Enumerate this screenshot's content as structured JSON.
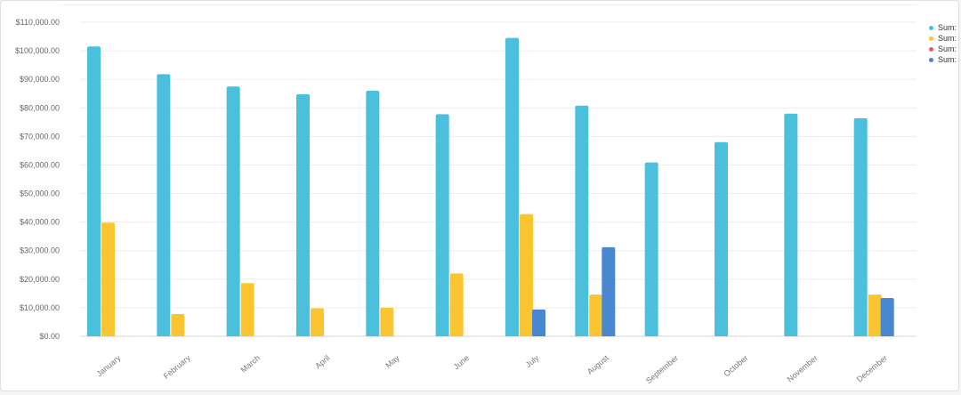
{
  "chart_data": {
    "type": "bar",
    "categories": [
      "January",
      "February",
      "March",
      "April",
      "May",
      "June",
      "July",
      "August",
      "September",
      "October",
      "November",
      "December"
    ],
    "series": [
      {
        "name": "Sum: In",
        "color": "#4bc0dd",
        "values": [
          101500,
          91800,
          87500,
          84800,
          86000,
          77800,
          104500,
          80800,
          60900,
          68000,
          78000,
          76400
        ]
      },
      {
        "name": "Sum: P",
        "color": "#fbc531",
        "values": [
          39800,
          7800,
          18600,
          9800,
          10000,
          22000,
          42800,
          14600,
          0,
          0,
          0,
          14600
        ]
      },
      {
        "name": "Sum: A",
        "color": "#f3566b",
        "values": [
          0,
          0,
          0,
          0,
          0,
          0,
          0,
          0,
          0,
          0,
          0,
          0
        ]
      },
      {
        "name": "Sum: E",
        "color": "#4a87d1",
        "values": [
          0,
          0,
          0,
          0,
          0,
          0,
          9400,
          31200,
          0,
          0,
          0,
          13400
        ]
      }
    ],
    "yticks": [
      "$0.00",
      "$10,000.00",
      "$20,000.00",
      "$30,000.00",
      "$40,000.00",
      "$50,000.00",
      "$60,000.00",
      "$70,000.00",
      "$80,000.00",
      "$90,000.00",
      "$100,000.00",
      "$110,000.00"
    ],
    "ylim": [
      0,
      110000
    ],
    "grid": true,
    "legend_position": "right"
  }
}
